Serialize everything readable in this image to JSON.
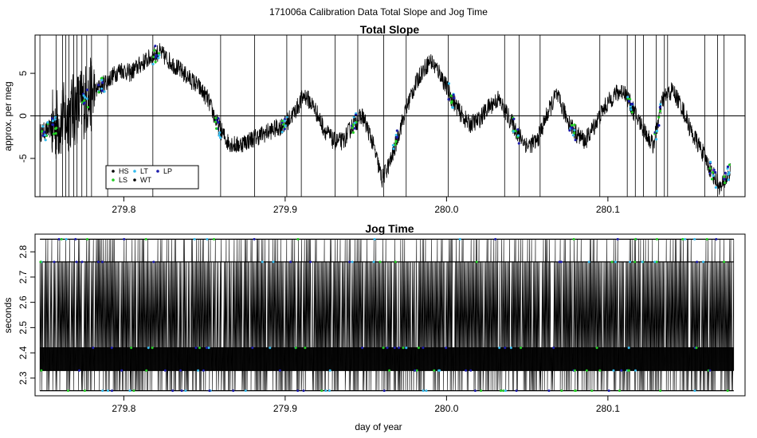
{
  "figure": {
    "title": "171006a   Calibration Data Total Slope and Jog Time",
    "xlabel": "day of year"
  },
  "colors": {
    "HS": "#000000",
    "LS": "#22cc22",
    "LT": "#33bbee",
    "WT": "#000000",
    "LP": "#1a1aaa",
    "trace": "#000000"
  },
  "chart_data": [
    {
      "type": "line",
      "title": "Total Slope",
      "xlabel": "",
      "ylabel": "approx. per meg",
      "xlim": [
        279.745,
        280.185
      ],
      "ylim": [
        -9.5,
        9.5
      ],
      "xticks": [
        279.8,
        279.9,
        280.0,
        280.1
      ],
      "xtick_labels": [
        "279.8",
        "279.9",
        "280.0",
        "280.1"
      ],
      "yticks": [
        -5,
        0,
        5
      ],
      "ytick_labels": [
        "-5",
        "0",
        "5"
      ],
      "hline": 0,
      "legend": {
        "placement": "bottom-left",
        "entries": [
          {
            "key": "HS",
            "label": "HS"
          },
          {
            "key": "LT",
            "label": "LT"
          },
          {
            "key": "LP",
            "label": "LP"
          },
          {
            "key": "LS",
            "label": "LS"
          },
          {
            "key": "WT",
            "label": "WT"
          }
        ]
      },
      "series": [
        {
          "x": [
            279.748,
            279.755,
            279.762,
            279.768,
            279.774,
            279.78,
            279.786,
            279.792,
            279.798,
            279.804,
            279.81,
            279.816,
            279.822,
            279.828,
            279.834,
            279.84,
            279.846,
            279.852,
            279.858,
            279.864,
            279.87,
            279.876,
            279.882,
            279.888,
            279.894,
            279.9,
            279.906,
            279.912,
            279.918,
            279.924,
            279.93,
            279.936,
            279.942,
            279.948,
            279.954,
            279.96,
            279.966,
            279.972,
            279.978,
            279.984,
            279.99,
            279.996,
            280.002,
            280.008,
            280.014,
            280.02,
            280.026,
            280.032,
            280.038,
            280.044,
            280.05,
            280.056,
            280.062,
            280.068,
            280.074,
            280.08,
            280.086,
            280.092,
            280.098,
            280.104,
            280.11,
            280.116,
            280.122,
            280.128,
            280.134,
            280.14,
            280.146,
            280.152,
            280.158,
            280.164,
            280.17,
            280.176
          ],
          "y": [
            -2.0,
            -1.5,
            -0.5,
            0.5,
            1.5,
            2.5,
            3.5,
            4.5,
            5.5,
            5.0,
            6.0,
            6.8,
            7.5,
            6.5,
            5.5,
            4.5,
            3.5,
            2.0,
            -1.0,
            -3.0,
            -3.5,
            -3.0,
            -2.5,
            -2.0,
            -1.5,
            -1.0,
            0.5,
            2.5,
            1.0,
            -1.5,
            -3.0,
            -3.0,
            -1.0,
            0.0,
            -3.0,
            -7.5,
            -5.0,
            -1.0,
            2.5,
            5.0,
            6.5,
            5.0,
            2.5,
            0.5,
            -1.0,
            -0.5,
            1.0,
            2.0,
            0.0,
            -2.0,
            -3.5,
            -3.0,
            0.0,
            2.5,
            0.0,
            -2.0,
            -3.0,
            -1.0,
            1.0,
            2.5,
            3.0,
            0.5,
            -1.5,
            -3.5,
            2.0,
            3.0,
            1.0,
            -2.0,
            -4.0,
            -6.5,
            -8.5,
            -6.5
          ]
        }
      ]
    },
    {
      "type": "line",
      "title": "Jog Time",
      "xlabel": "day of year",
      "ylabel": "seconds",
      "xlim": [
        279.745,
        280.185
      ],
      "ylim": [
        2.23,
        2.87
      ],
      "xticks": [
        279.8,
        279.9,
        280.0,
        280.1
      ],
      "xtick_labels": [
        "279.8",
        "279.9",
        "280.0",
        "280.1"
      ],
      "yticks": [
        2.3,
        2.4,
        2.5,
        2.6,
        2.7,
        2.8
      ],
      "ytick_labels": [
        "2.3",
        "2.4",
        "2.5",
        "2.6",
        "2.7",
        "2.8"
      ],
      "levels": [
        2.25,
        2.33,
        2.37,
        2.42,
        2.76,
        2.85
      ],
      "series": [
        {
          "x": [
            279.748,
            279.758,
            279.768,
            279.778,
            279.788,
            279.798,
            279.808,
            279.818,
            279.828,
            279.838,
            279.848,
            279.858,
            279.868,
            279.878,
            279.888,
            279.898,
            279.908,
            279.918,
            279.928,
            279.938,
            279.948,
            279.958,
            279.968,
            279.978,
            279.988,
            279.998,
            280.008,
            280.018,
            280.028,
            280.038,
            280.048,
            280.058,
            280.068,
            280.078,
            280.088,
            280.098,
            280.108,
            280.118,
            280.128,
            280.138,
            280.148,
            280.158,
            280.168,
            280.178
          ],
          "y": [
            2.37,
            2.38,
            2.37,
            2.37,
            2.36,
            2.38,
            2.37,
            2.37,
            2.38,
            2.36,
            2.37,
            2.38,
            2.37,
            2.37,
            2.36,
            2.38,
            2.37,
            2.37,
            2.38,
            2.37,
            2.36,
            2.37,
            2.38,
            2.37,
            2.37,
            2.36,
            2.38,
            2.37,
            2.37,
            2.38,
            2.37,
            2.36,
            2.37,
            2.38,
            2.37,
            2.37,
            2.36,
            2.38,
            2.37,
            2.37,
            2.38,
            2.37,
            2.36,
            2.37
          ]
        }
      ]
    }
  ]
}
